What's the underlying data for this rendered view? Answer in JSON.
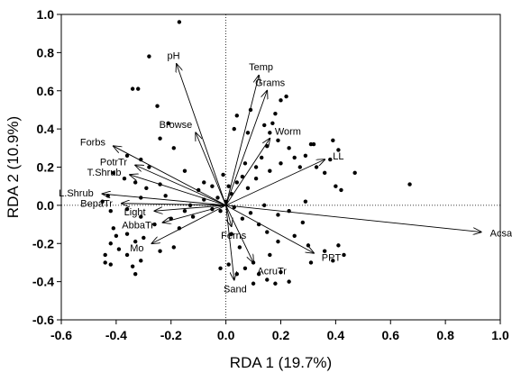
{
  "chart_data": {
    "type": "scatter",
    "xlabel": "RDA 1 (19.7%)",
    "ylabel": "RDA 2 (10.9%)",
    "xlim": [
      -0.6,
      1.0
    ],
    "ylim": [
      -0.6,
      1.0
    ],
    "x_ticks": [
      "-0.6",
      "-0.4",
      "-0.2",
      "0.0",
      "0.2",
      "0.4",
      "0.6",
      "0.8",
      "1.0"
    ],
    "y_ticks": [
      "-0.6",
      "-0.4",
      "-0.2",
      "0.0",
      "0.2",
      "0.4",
      "0.6",
      "0.8",
      "1.0"
    ],
    "reference_lines": {
      "x": 0,
      "y": 0,
      "style": "dotted"
    },
    "grid": false,
    "vectors": [
      {
        "label": "pH",
        "x": -0.18,
        "y": 0.74
      },
      {
        "label": "Temp",
        "x": 0.12,
        "y": 0.68
      },
      {
        "label": "Grams",
        "x": 0.15,
        "y": 0.6
      },
      {
        "label": "Browse",
        "x": -0.11,
        "y": 0.38
      },
      {
        "label": "Worm",
        "x": 0.16,
        "y": 0.35
      },
      {
        "label": "Forbs",
        "x": -0.41,
        "y": 0.31
      },
      {
        "label": "LL",
        "x": 0.36,
        "y": 0.24
      },
      {
        "label": "PotrTr",
        "x": -0.33,
        "y": 0.21
      },
      {
        "label": "T.Shrub",
        "x": -0.35,
        "y": 0.16
      },
      {
        "label": "L.Shrub",
        "x": -0.45,
        "y": 0.06
      },
      {
        "label": "BepaTr",
        "x": -0.38,
        "y": 0.01
      },
      {
        "label": "Light",
        "x": -0.26,
        "y": -0.03
      },
      {
        "label": "AbbaTr",
        "x": -0.23,
        "y": -0.09
      },
      {
        "label": "Ferns",
        "x": 0.02,
        "y": -0.11
      },
      {
        "label": "AcsaTr",
        "x": 0.93,
        "y": -0.14
      },
      {
        "label": "Mo",
        "x": -0.27,
        "y": -0.2
      },
      {
        "label": "PPT",
        "x": 0.32,
        "y": -0.25
      },
      {
        "label": "AcruTr",
        "x": 0.1,
        "y": -0.3
      },
      {
        "label": "Sand",
        "x": 0.03,
        "y": -0.39
      }
    ],
    "points": [
      [
        -0.17,
        0.96
      ],
      [
        -0.28,
        0.78
      ],
      [
        -0.34,
        0.61
      ],
      [
        -0.32,
        0.61
      ],
      [
        -0.25,
        0.52
      ],
      [
        -0.21,
        0.43
      ],
      [
        -0.24,
        0.35
      ],
      [
        -0.36,
        0.26
      ],
      [
        -0.31,
        0.24
      ],
      [
        -0.28,
        0.2
      ],
      [
        -0.41,
        0.17
      ],
      [
        -0.37,
        0.14
      ],
      [
        -0.33,
        0.12
      ],
      [
        -0.29,
        0.09
      ],
      [
        -0.24,
        0.11
      ],
      [
        -0.22,
        0.05
      ],
      [
        -0.31,
        0.04
      ],
      [
        -0.43,
        0.05
      ],
      [
        -0.45,
        0.02
      ],
      [
        -0.42,
        -0.03
      ],
      [
        -0.36,
        -0.02
      ],
      [
        -0.31,
        -0.06
      ],
      [
        -0.26,
        -0.1
      ],
      [
        -0.2,
        -0.07
      ],
      [
        -0.17,
        -0.12
      ],
      [
        -0.41,
        -0.12
      ],
      [
        -0.4,
        -0.16
      ],
      [
        -0.36,
        -0.15
      ],
      [
        -0.33,
        -0.19
      ],
      [
        -0.3,
        -0.17
      ],
      [
        -0.42,
        -0.2
      ],
      [
        -0.39,
        -0.23
      ],
      [
        -0.44,
        -0.26
      ],
      [
        -0.36,
        -0.26
      ],
      [
        -0.31,
        -0.29
      ],
      [
        -0.24,
        -0.24
      ],
      [
        -0.19,
        -0.22
      ],
      [
        -0.44,
        -0.3
      ],
      [
        -0.42,
        -0.31
      ],
      [
        -0.34,
        -0.32
      ],
      [
        -0.33,
        -0.36
      ],
      [
        -0.12,
        -0.06
      ],
      [
        -0.1,
        0.08
      ],
      [
        -0.08,
        0.12
      ],
      [
        -0.15,
        0.18
      ],
      [
        -0.19,
        0.3
      ],
      [
        -0.08,
        0.03
      ],
      [
        -0.05,
        0.1
      ],
      [
        -0.03,
        0.04
      ],
      [
        0.02,
        0.06
      ],
      [
        0.04,
        0.12
      ],
      [
        0.06,
        0.15
      ],
      [
        0.08,
        0.09
      ],
      [
        0.11,
        0.2
      ],
      [
        0.13,
        0.25
      ],
      [
        0.15,
        0.31
      ],
      [
        0.16,
        0.38
      ],
      [
        0.17,
        0.43
      ],
      [
        0.18,
        0.48
      ],
      [
        0.2,
        0.55
      ],
      [
        0.22,
        0.57
      ],
      [
        0.09,
        0.5
      ],
      [
        0.04,
        0.47
      ],
      [
        0.03,
        0.4
      ],
      [
        0.08,
        0.38
      ],
      [
        0.14,
        0.42
      ],
      [
        0.19,
        0.34
      ],
      [
        0.23,
        0.3
      ],
      [
        0.25,
        0.25
      ],
      [
        0.2,
        0.22
      ],
      [
        0.16,
        0.18
      ],
      [
        0.11,
        0.14
      ],
      [
        0.27,
        0.2
      ],
      [
        0.29,
        0.26
      ],
      [
        0.31,
        0.32
      ],
      [
        0.32,
        0.32
      ],
      [
        0.33,
        0.2
      ],
      [
        0.36,
        0.17
      ],
      [
        0.39,
        0.34
      ],
      [
        0.41,
        0.29
      ],
      [
        0.38,
        0.24
      ],
      [
        0.4,
        0.1
      ],
      [
        0.42,
        0.08
      ],
      [
        0.47,
        0.17
      ],
      [
        0.67,
        0.11
      ],
      [
        0.29,
        0.02
      ],
      [
        0.23,
        -0.03
      ],
      [
        0.19,
        -0.05
      ],
      [
        0.14,
        0.0
      ],
      [
        0.09,
        -0.04
      ],
      [
        0.12,
        -0.1
      ],
      [
        0.15,
        -0.14
      ],
      [
        0.19,
        -0.19
      ],
      [
        0.25,
        -0.16
      ],
      [
        0.28,
        -0.09
      ],
      [
        0.3,
        -0.21
      ],
      [
        0.36,
        -0.24
      ],
      [
        0.41,
        -0.21
      ],
      [
        0.43,
        -0.26
      ],
      [
        0.39,
        -0.29
      ],
      [
        0.31,
        -0.3
      ],
      [
        0.1,
        -0.3
      ],
      [
        0.07,
        -0.33
      ],
      [
        0.04,
        -0.36
      ],
      [
        0.01,
        -0.31
      ],
      [
        -0.02,
        -0.33
      ],
      [
        0.12,
        -0.36
      ],
      [
        0.15,
        -0.39
      ],
      [
        0.18,
        -0.41
      ],
      [
        0.1,
        -0.41
      ],
      [
        0.2,
        -0.35
      ],
      [
        0.23,
        -0.4
      ],
      [
        0.16,
        -0.26
      ],
      [
        0.05,
        -0.22
      ],
      [
        0.02,
        -0.15
      ],
      [
        0.06,
        -0.07
      ],
      [
        -0.02,
        -0.03
      ],
      [
        0.0,
        0.02
      ],
      [
        0.03,
        -0.01
      ],
      [
        -0.05,
        -0.02
      ],
      [
        0.01,
        0.1
      ],
      [
        -0.01,
        0.16
      ],
      [
        0.07,
        0.22
      ],
      [
        -0.13,
        0.0
      ],
      [
        -0.15,
        -0.03
      ]
    ]
  }
}
